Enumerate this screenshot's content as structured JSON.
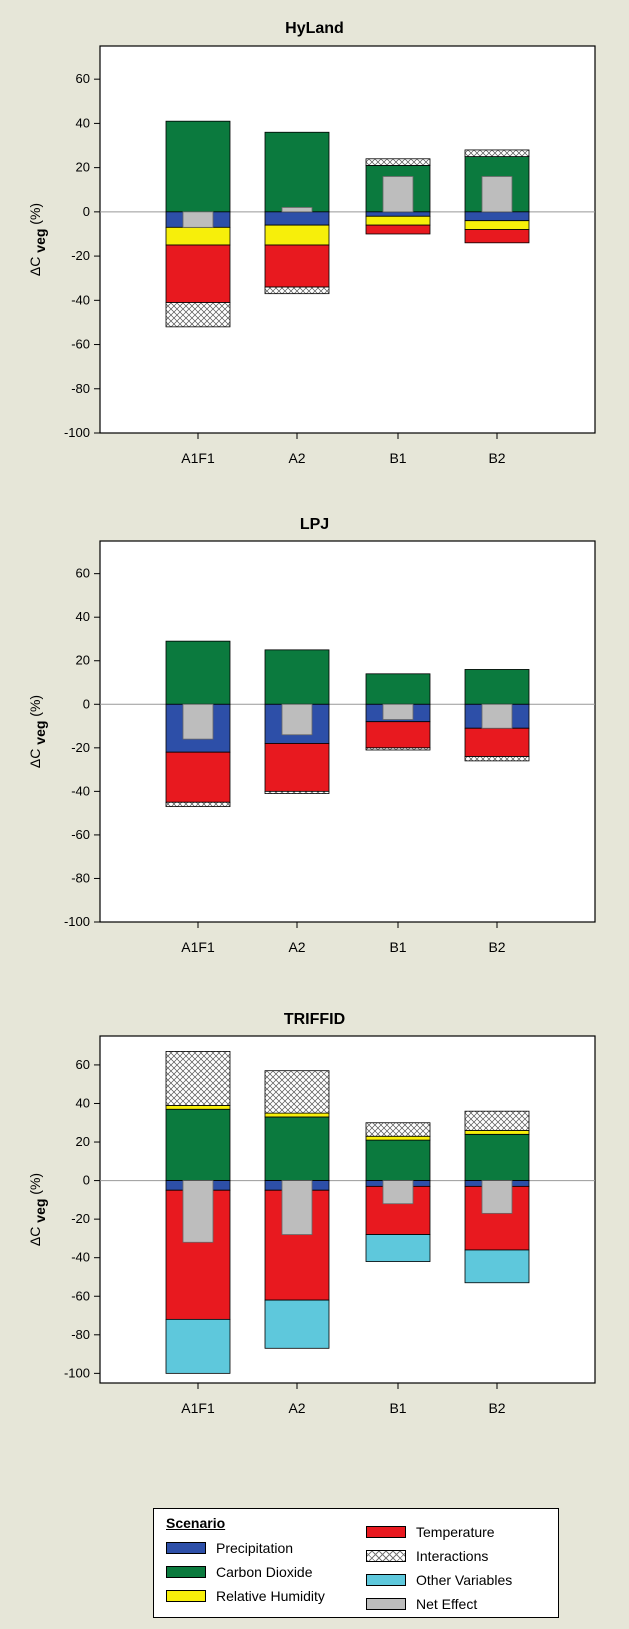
{
  "colors": {
    "precipitation": "#2d4fa8",
    "carbon_dioxide": "#0b7a3e",
    "relative_humidity": "#f7ef0a",
    "temperature": "#e8191f",
    "other_variables": "#5ec8dc",
    "net_effect": "#bdbdbd",
    "interactions": "hatch"
  },
  "chart_data": [
    {
      "type": "bar",
      "title": "HyLand",
      "ylabel": "ΔC veg (%)",
      "ylim": [
        -100,
        75
      ],
      "yticks": [
        "60",
        "40",
        "20",
        "0",
        "-20",
        "-40",
        "-60",
        "-80",
        "-100"
      ],
      "categories": [
        "A1F1",
        "A2",
        "B1",
        "B2"
      ],
      "bars": [
        {
          "pos": [
            [
              "carbon_dioxide",
              0,
              41
            ]
          ],
          "neg": [
            [
              "precipitation",
              0,
              -7
            ],
            [
              "relative_humidity",
              -7,
              -15
            ],
            [
              "temperature",
              -15,
              -41
            ],
            [
              "interactions",
              -41,
              -52
            ]
          ],
          "net": -7
        },
        {
          "pos": [
            [
              "carbon_dioxide",
              0,
              36
            ]
          ],
          "neg": [
            [
              "precipitation",
              0,
              -6
            ],
            [
              "relative_humidity",
              -6,
              -15
            ],
            [
              "temperature",
              -15,
              -34
            ],
            [
              "interactions",
              -34,
              -37
            ]
          ],
          "net": 2
        },
        {
          "pos": [
            [
              "carbon_dioxide",
              0,
              21
            ],
            [
              "interactions",
              21,
              24
            ]
          ],
          "neg": [
            [
              "precipitation",
              0,
              -2
            ],
            [
              "relative_humidity",
              -2,
              -6
            ],
            [
              "temperature",
              -6,
              -10
            ]
          ],
          "net": 16
        },
        {
          "pos": [
            [
              "carbon_dioxide",
              0,
              25
            ],
            [
              "interactions",
              25,
              28
            ]
          ],
          "neg": [
            [
              "precipitation",
              0,
              -4
            ],
            [
              "relative_humidity",
              -4,
              -8
            ],
            [
              "temperature",
              -8,
              -14
            ]
          ],
          "net": 16
        }
      ]
    },
    {
      "type": "bar",
      "title": "LPJ",
      "ylabel": "ΔC veg (%)",
      "ylim": [
        -100,
        75
      ],
      "yticks": [
        "60",
        "40",
        "20",
        "0",
        "-20",
        "-40",
        "-60",
        "-80",
        "-100"
      ],
      "categories": [
        "A1F1",
        "A2",
        "B1",
        "B2"
      ],
      "bars": [
        {
          "pos": [
            [
              "carbon_dioxide",
              0,
              29
            ]
          ],
          "neg": [
            [
              "precipitation",
              0,
              -22
            ],
            [
              "temperature",
              -22,
              -45
            ],
            [
              "interactions",
              -45,
              -47
            ]
          ],
          "net": -16
        },
        {
          "pos": [
            [
              "carbon_dioxide",
              0,
              25
            ]
          ],
          "neg": [
            [
              "precipitation",
              0,
              -18
            ],
            [
              "temperature",
              -18,
              -40
            ],
            [
              "interactions",
              -40,
              -41
            ]
          ],
          "net": -14
        },
        {
          "pos": [
            [
              "carbon_dioxide",
              0,
              14
            ]
          ],
          "neg": [
            [
              "precipitation",
              0,
              -8
            ],
            [
              "temperature",
              -8,
              -20
            ],
            [
              "interactions",
              -20,
              -21
            ]
          ],
          "net": -7
        },
        {
          "pos": [
            [
              "carbon_dioxide",
              0,
              16
            ]
          ],
          "neg": [
            [
              "precipitation",
              0,
              -11
            ],
            [
              "temperature",
              -11,
              -24
            ],
            [
              "interactions",
              -24,
              -26
            ]
          ],
          "net": -11
        }
      ]
    },
    {
      "type": "bar",
      "title": "TRIFFID",
      "ylabel": "ΔC veg (%)",
      "ylim": [
        -105,
        75
      ],
      "yticks": [
        "60",
        "40",
        "20",
        "0",
        "-20",
        "-40",
        "-60",
        "-80",
        "-100"
      ],
      "categories": [
        "A1F1",
        "A2",
        "B1",
        "B2"
      ],
      "bars": [
        {
          "pos": [
            [
              "carbon_dioxide",
              0,
              37
            ],
            [
              "relative_humidity",
              37,
              39
            ],
            [
              "interactions",
              39,
              67
            ]
          ],
          "neg": [
            [
              "precipitation",
              0,
              -5
            ],
            [
              "temperature",
              -5,
              -72
            ],
            [
              "other_variables",
              -72,
              -100
            ]
          ],
          "net": -32
        },
        {
          "pos": [
            [
              "carbon_dioxide",
              0,
              33
            ],
            [
              "relative_humidity",
              33,
              35
            ],
            [
              "interactions",
              35,
              57
            ]
          ],
          "neg": [
            [
              "precipitation",
              0,
              -5
            ],
            [
              "temperature",
              -5,
              -62
            ],
            [
              "other_variables",
              -62,
              -87
            ]
          ],
          "net": -28
        },
        {
          "pos": [
            [
              "carbon_dioxide",
              0,
              21
            ],
            [
              "relative_humidity",
              21,
              23
            ],
            [
              "interactions",
              23,
              30
            ]
          ],
          "neg": [
            [
              "precipitation",
              0,
              -3
            ],
            [
              "temperature",
              -3,
              -28
            ],
            [
              "other_variables",
              -28,
              -42
            ]
          ],
          "net": -12
        },
        {
          "pos": [
            [
              "carbon_dioxide",
              0,
              24
            ],
            [
              "relative_humidity",
              24,
              26
            ],
            [
              "interactions",
              26,
              36
            ]
          ],
          "neg": [
            [
              "precipitation",
              0,
              -3
            ],
            [
              "temperature",
              -3,
              -36
            ],
            [
              "other_variables",
              -36,
              -53
            ]
          ],
          "net": -17
        }
      ]
    }
  ],
  "legend": {
    "title": "Scenario",
    "items": [
      {
        "key": "precipitation",
        "label": "Precipitation"
      },
      {
        "key": "carbon_dioxide",
        "label": "Carbon Dioxide"
      },
      {
        "key": "relative_humidity",
        "label": "Relative Humidity"
      },
      {
        "key": "temperature",
        "label": "Temperature"
      },
      {
        "key": "interactions",
        "label": "Interactions"
      },
      {
        "key": "other_variables",
        "label": "Other Variables"
      },
      {
        "key": "net_effect",
        "label": "Net Effect"
      }
    ]
  }
}
